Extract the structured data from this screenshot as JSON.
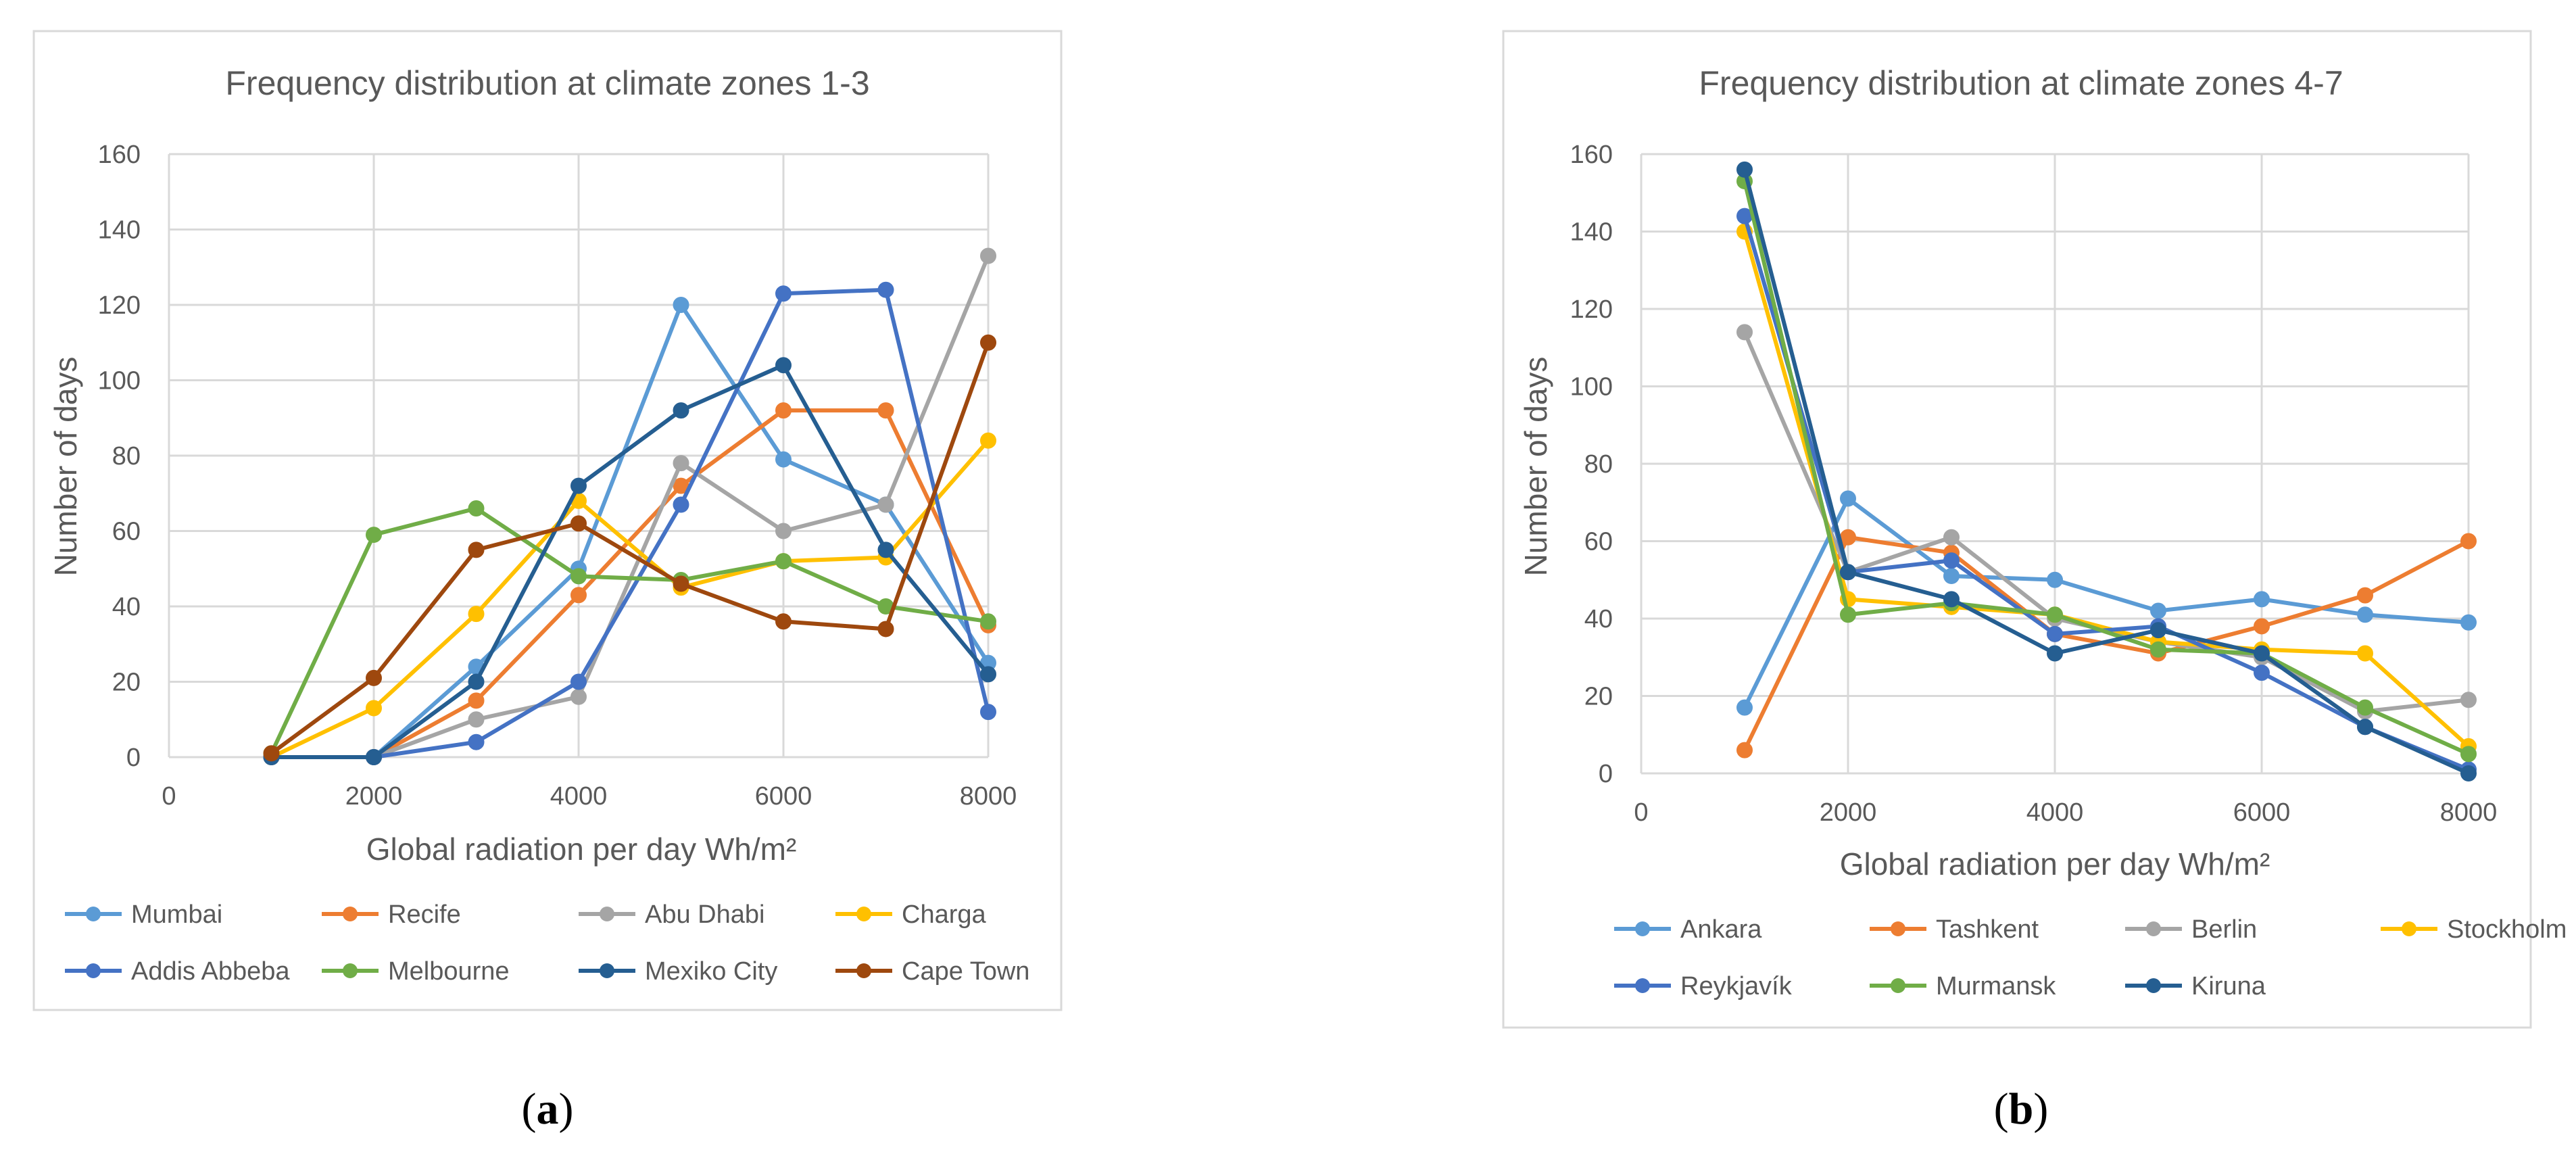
{
  "chart_data": [
    {
      "type": "line",
      "title": "Frequency distribution at climate zones 1-3",
      "xlabel": "Global radiation per day Wh/m²",
      "ylabel": "Number of days",
      "xlim": [
        0,
        8000
      ],
      "ylim": [
        0,
        160
      ],
      "xticks": [
        0,
        2000,
        4000,
        6000,
        8000
      ],
      "yticks": [
        0,
        20,
        40,
        60,
        80,
        100,
        120,
        140,
        160
      ],
      "grid": true,
      "legend_position": "bottom",
      "caption": {
        "open": "(",
        "letter": "a",
        "close": ")"
      },
      "x": [
        1000,
        2000,
        3000,
        4000,
        5000,
        6000,
        7000,
        8000
      ],
      "series": [
        {
          "name": "Mumbai",
          "color": "#5B9BD5",
          "values": [
            0,
            0,
            24,
            50,
            120,
            79,
            67,
            25
          ]
        },
        {
          "name": "Recife",
          "color": "#ED7D31",
          "values": [
            0,
            0,
            15,
            43,
            72,
            92,
            92,
            35
          ]
        },
        {
          "name": "Abu Dhabi",
          "color": "#A5A5A5",
          "values": [
            0,
            0,
            10,
            16,
            78,
            60,
            67,
            133
          ]
        },
        {
          "name": "Charga",
          "color": "#FFC000",
          "values": [
            0,
            13,
            38,
            68,
            45,
            52,
            53,
            84
          ]
        },
        {
          "name": "Addis Abbeba",
          "color": "#4472C4",
          "values": [
            0,
            0,
            4,
            20,
            67,
            123,
            124,
            12
          ]
        },
        {
          "name": "Melbourne",
          "color": "#70AD47",
          "values": [
            1,
            59,
            66,
            48,
            47,
            52,
            40,
            36
          ]
        },
        {
          "name": "Mexiko City",
          "color": "#255E91",
          "values": [
            0,
            0,
            20,
            72,
            92,
            104,
            55,
            22
          ]
        },
        {
          "name": "Cape Town",
          "color": "#9E480E",
          "values": [
            1,
            21,
            55,
            62,
            46,
            36,
            34,
            110
          ]
        }
      ]
    },
    {
      "type": "line",
      "title": "Frequency distribution at climate zones 4-7",
      "xlabel": "Global radiation per day Wh/m²",
      "ylabel": "Number of days",
      "xlim": [
        0,
        8000
      ],
      "ylim": [
        0,
        160
      ],
      "xticks": [
        0,
        2000,
        4000,
        6000,
        8000
      ],
      "yticks": [
        0,
        20,
        40,
        60,
        80,
        100,
        120,
        140,
        160
      ],
      "grid": true,
      "legend_position": "bottom",
      "caption": {
        "open": "(",
        "letter": "b",
        "close": ")"
      },
      "x": [
        1000,
        2000,
        3000,
        4000,
        5000,
        6000,
        7000,
        8000
      ],
      "series": [
        {
          "name": "Ankara",
          "color": "#5B9BD5",
          "values": [
            17,
            71,
            51,
            50,
            42,
            45,
            41,
            39
          ]
        },
        {
          "name": "Tashkent",
          "color": "#ED7D31",
          "values": [
            6,
            61,
            57,
            36,
            31,
            38,
            46,
            60
          ]
        },
        {
          "name": "Berlin",
          "color": "#A5A5A5",
          "values": [
            114,
            52,
            61,
            40,
            34,
            30,
            16,
            19
          ]
        },
        {
          "name": "Stockholm",
          "color": "#FFC000",
          "values": [
            140,
            45,
            43,
            41,
            34,
            32,
            31,
            7
          ]
        },
        {
          "name": "Reykjavík",
          "color": "#4472C4",
          "values": [
            144,
            52,
            55,
            36,
            38,
            26,
            12,
            1
          ]
        },
        {
          "name": "Murmansk",
          "color": "#70AD47",
          "values": [
            153,
            41,
            44,
            41,
            32,
            31,
            17,
            5
          ]
        },
        {
          "name": "Kiruna",
          "color": "#255E91",
          "values": [
            156,
            52,
            45,
            31,
            37,
            31,
            12,
            0
          ]
        }
      ]
    }
  ]
}
